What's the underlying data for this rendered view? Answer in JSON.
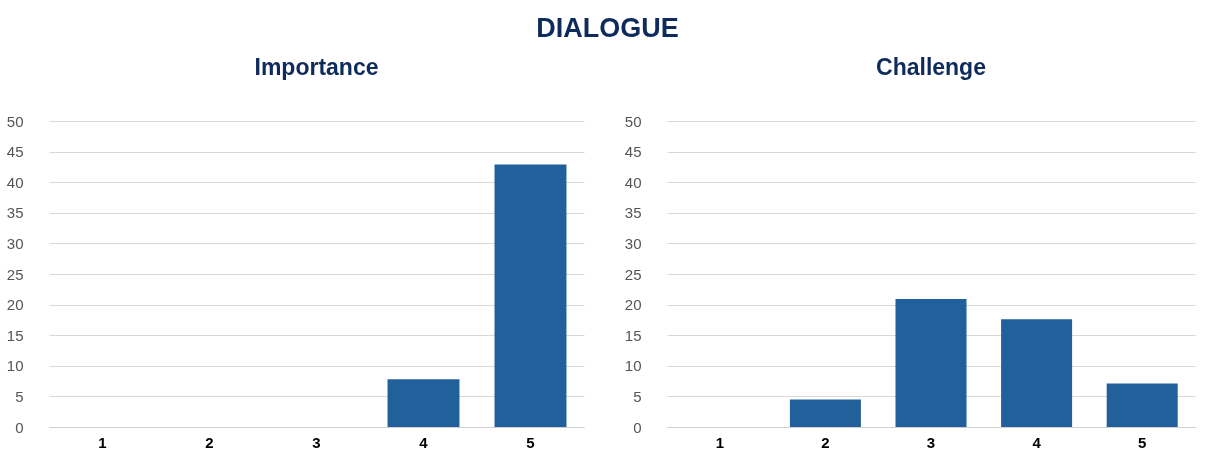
{
  "chart_data": [
    {
      "type": "bar",
      "title": "Importance",
      "annotations": [
        "DIALOGUE"
      ],
      "categories": [
        "1",
        "2",
        "3",
        "4",
        "5"
      ],
      "values": [
        0,
        0,
        0,
        7.8,
        42.9
      ],
      "color": "#22609b",
      "ylim": [
        0,
        50
      ],
      "yticks": [
        0,
        5,
        10,
        15,
        20,
        25,
        30,
        35,
        40,
        45,
        50
      ],
      "grid": "y"
    },
    {
      "type": "bar",
      "title": "Challenge",
      "categories": [
        "1",
        "2",
        "3",
        "4",
        "5"
      ],
      "values": [
        0,
        4.5,
        20.9,
        17.6,
        7.1
      ],
      "color": "#22609b",
      "ylim": [
        0,
        50
      ],
      "yticks": [
        0,
        5,
        10,
        15,
        20,
        25,
        30,
        35,
        40,
        45,
        50
      ],
      "grid": "y"
    }
  ]
}
